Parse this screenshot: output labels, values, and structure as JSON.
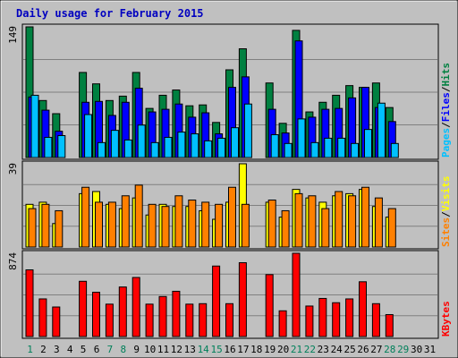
{
  "chart_data": {
    "type": "bar",
    "title": "Daily usage for February 2015",
    "days": [
      "1",
      "2",
      "3",
      "4",
      "5",
      "6",
      "7",
      "8",
      "9",
      "10",
      "11",
      "12",
      "13",
      "14",
      "15",
      "16",
      "17",
      "18",
      "19",
      "20",
      "21",
      "22",
      "23",
      "24",
      "25",
      "26",
      "27",
      "28",
      "29",
      "30",
      "31"
    ],
    "weekend_days": [
      "1",
      "7",
      "8",
      "14",
      "15",
      "21",
      "22",
      "28",
      "29"
    ],
    "panels": [
      {
        "id": "hits",
        "ymax": 149,
        "ymax_label": "149",
        "legend": [
          "Pages",
          "/",
          "Files",
          "/",
          "Hits"
        ],
        "series": [
          {
            "name": "Hits",
            "color": "#008040",
            "values": [
              149,
              65,
              50,
              0,
              97,
              84,
              65,
              70,
              97,
              56,
              71,
              77,
              59,
              60,
              40,
              100,
              124,
              0,
              85,
              39,
              145,
              52,
              63,
              71,
              82,
              80,
              85,
              57,
              0,
              0,
              0
            ]
          },
          {
            "name": "Files",
            "color": "#0000ff",
            "values": [
              69,
              54,
              30,
              0,
              63,
              64,
              48,
              63,
              79,
              52,
              55,
              61,
              46,
              51,
              27,
              80,
              92,
              0,
              55,
              28,
              133,
              46,
              55,
              56,
              68,
              80,
              57,
              41,
              0,
              0,
              0
            ]
          },
          {
            "name": "Pages",
            "color": "#00c0ff",
            "values": [
              71,
              23,
              25,
              0,
              49,
              17,
              31,
              20,
              37,
              17,
              23,
              29,
              27,
              19,
              22,
              34,
              61,
              0,
              26,
              16,
              44,
              17,
              22,
              22,
              16,
              32,
              62,
              16,
              0,
              0,
              0
            ]
          }
        ]
      },
      {
        "id": "visits",
        "ymax": 39,
        "ymax_label": "39",
        "legend": [
          "Sites",
          "/",
          "Visits"
        ],
        "series": [
          {
            "name": "Visits",
            "color": "#ffff00",
            "values": [
              20,
              21,
              11,
              0,
              25,
              26,
              20,
              18,
              23,
              15,
              20,
              19,
              19,
              17,
              13,
              21,
              39,
              0,
              21,
              14,
              27,
              23,
              21,
              24,
              25,
              27,
              19,
              14,
              0,
              0,
              0
            ]
          },
          {
            "name": "Sites",
            "color": "#ff8000",
            "values": [
              18,
              20,
              17,
              0,
              28,
              21,
              21,
              24,
              29,
              20,
              19,
              24,
              22,
              21,
              20,
              28,
              20,
              0,
              22,
              17,
              25,
              24,
              18,
              26,
              24,
              28,
              23,
              18,
              0,
              0,
              0
            ]
          }
        ]
      },
      {
        "id": "kbytes",
        "ymax": 874,
        "ymax_label": "874",
        "legend": [
          "KBytes"
        ],
        "series": [
          {
            "name": "KBytes",
            "color": "#ff0000",
            "values": [
              700,
              395,
              310,
              0,
              580,
              465,
              340,
              520,
              620,
              340,
              420,
              475,
              340,
              345,
              740,
              345,
              775,
              0,
              650,
              270,
              874,
              320,
              400,
              355,
              395,
              575,
              345,
              230,
              0,
              0,
              0
            ]
          }
        ]
      }
    ]
  }
}
